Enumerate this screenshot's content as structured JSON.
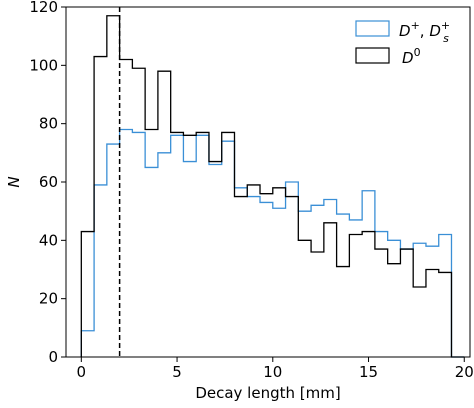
{
  "chart_data": {
    "type": "histogram",
    "xlabel": "Decay length [mm]",
    "ylabel": "N",
    "xlim": [
      -0.8,
      20.3
    ],
    "ylim": [
      0,
      120
    ],
    "xticks": [
      0,
      5,
      10,
      15,
      20
    ],
    "yticks": [
      0,
      20,
      40,
      60,
      80,
      100,
      120
    ],
    "bin_edges": [
      0,
      0.667,
      1.333,
      2.0,
      2.667,
      3.333,
      4.0,
      4.667,
      5.333,
      6.0,
      6.667,
      7.333,
      8.0,
      8.667,
      9.333,
      10.0,
      10.667,
      11.333,
      12.0,
      12.667,
      13.333,
      14.0,
      14.667,
      15.333,
      16.0,
      16.667,
      17.333,
      18.0,
      18.667,
      19.333,
      20.0
    ],
    "cut_line_x": 2.0,
    "legend_position": "top-right",
    "series": [
      {
        "name": "D+, Ds+",
        "color": "#3a8fd6",
        "values": [
          9,
          59,
          73,
          78,
          77,
          65,
          70,
          76,
          67,
          76,
          66,
          74,
          58,
          55,
          53,
          51,
          60,
          50,
          52,
          54,
          49,
          47,
          57,
          43,
          40,
          37,
          39,
          38,
          42,
          0
        ]
      },
      {
        "name": "D0",
        "color": "#000000",
        "values": [
          43,
          103,
          117,
          102,
          99,
          78,
          98,
          77,
          76,
          77,
          67,
          77,
          55,
          59,
          56,
          58,
          55,
          40,
          36,
          46,
          31,
          42,
          43,
          37,
          32,
          37,
          24,
          30,
          29,
          0
        ]
      }
    ]
  },
  "legend": {
    "items": [
      {
        "base": "D",
        "sup": "+",
        "sep": ", ",
        "base2": "D",
        "sup2": "+",
        "sub2": "s"
      },
      {
        "base": "D",
        "sup": "0"
      }
    ]
  }
}
